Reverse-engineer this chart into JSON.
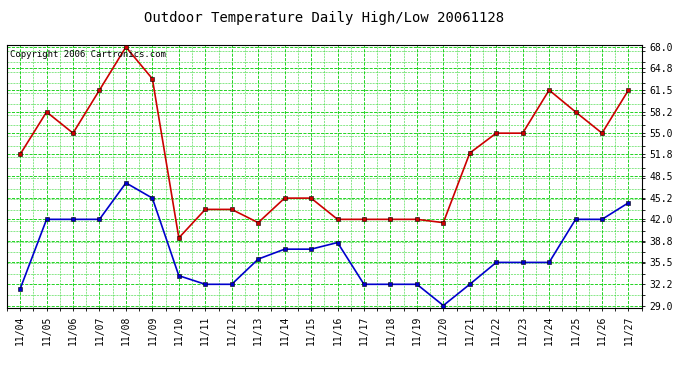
{
  "title": "Outdoor Temperature Daily High/Low 20061128",
  "copyright": "Copyright 2006 Cartronics.com",
  "x_labels": [
    "11/04",
    "11/05",
    "11/06",
    "11/07",
    "11/08",
    "11/09",
    "11/10",
    "11/11",
    "11/12",
    "11/13",
    "11/14",
    "11/15",
    "11/16",
    "11/17",
    "11/18",
    "11/19",
    "11/20",
    "11/21",
    "11/22",
    "11/23",
    "11/24",
    "11/25",
    "11/26",
    "11/27"
  ],
  "high_temps": [
    51.8,
    58.2,
    55.0,
    61.5,
    68.0,
    63.2,
    39.2,
    43.5,
    43.5,
    41.5,
    45.2,
    45.2,
    42.0,
    42.0,
    42.0,
    42.0,
    41.5,
    52.0,
    55.0,
    55.0,
    61.5,
    58.2,
    55.0,
    61.5
  ],
  "low_temps": [
    31.5,
    42.0,
    42.0,
    42.0,
    47.5,
    45.2,
    33.5,
    32.2,
    32.2,
    36.0,
    37.5,
    37.5,
    38.5,
    32.2,
    32.2,
    32.2,
    29.0,
    32.2,
    35.5,
    35.5,
    35.5,
    42.0,
    42.0,
    44.5
  ],
  "high_color": "#cc0000",
  "low_color": "#0000cc",
  "bg_color": "#ffffff",
  "plot_bg_color": "#ffffff",
  "grid_color": "#00cc00",
  "y_min": 29.0,
  "y_max": 68.0,
  "y_ticks": [
    29.0,
    32.2,
    35.5,
    38.8,
    42.0,
    45.2,
    48.5,
    51.8,
    55.0,
    58.2,
    61.5,
    64.8,
    68.0
  ],
  "title_fontsize": 10,
  "copyright_fontsize": 6.5,
  "axis_fontsize": 7,
  "marker": "s",
  "marker_size": 3,
  "line_width": 1.2
}
